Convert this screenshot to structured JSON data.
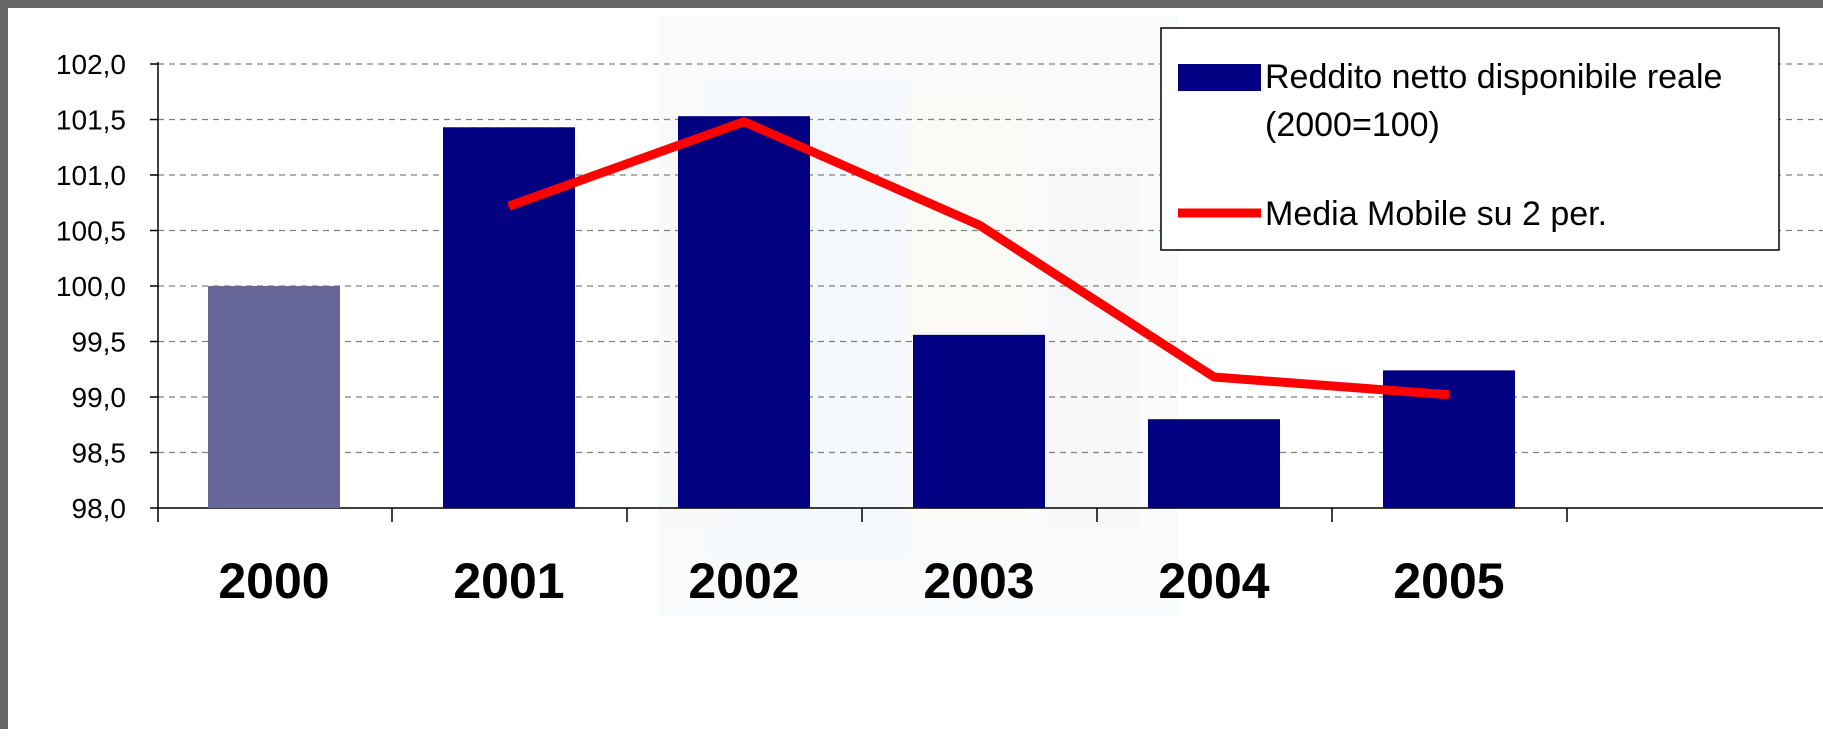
{
  "chart_data": {
    "type": "bar",
    "categories": [
      "2000",
      "2001",
      "2002",
      "2003",
      "2004",
      "2005"
    ],
    "series": [
      {
        "name": "Reddito netto disponibile reale (2000=100)",
        "legend_lines": [
          "Reddito netto disponibile reale",
          "(2000=100)"
        ],
        "type": "bar",
        "values": [
          100.0,
          101.43,
          101.53,
          99.56,
          98.8,
          99.24
        ],
        "color": "#000080",
        "highlight_color": "#666699",
        "highlight_index": 0
      },
      {
        "name": "Media Mobile su 2 per.",
        "legend_lines": [
          "Media Mobile su 2 per."
        ],
        "type": "line",
        "values": [
          null,
          100.72,
          101.48,
          100.55,
          99.18,
          99.02
        ],
        "color": "#ff0000"
      }
    ],
    "y_ticks": [
      "102,0",
      "101,5",
      "101,0",
      "100,5",
      "100,0",
      "99,5",
      "99,0",
      "98,5",
      "98,0"
    ],
    "ylim": [
      98.0,
      102.0
    ],
    "y_step": 0.5,
    "grid": true,
    "grid_style": "dashed",
    "legend_position": "top-right",
    "frame_color": "#666666"
  }
}
